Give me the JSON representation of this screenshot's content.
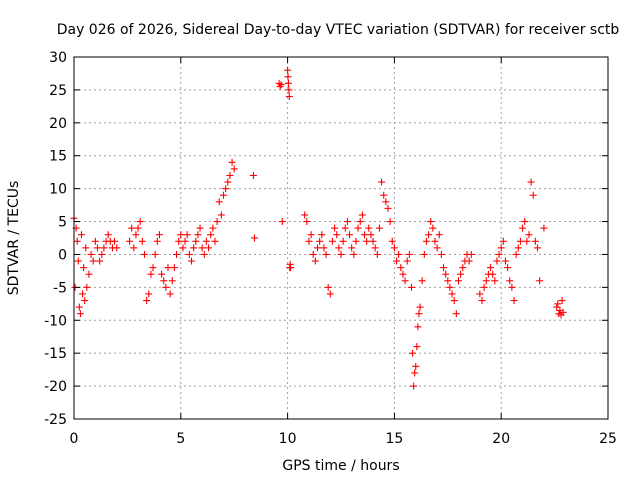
{
  "chart_data": {
    "type": "scatter",
    "title": "Day 026 of 2026, Sidereal Day-to-day VTEC variation (SDTVAR) for receiver sctb",
    "xlabel": "GPS time / hours",
    "ylabel": "SDTVAR / TECUs",
    "xlim": [
      0,
      25
    ],
    "ylim": [
      -25,
      30
    ],
    "xticks": [
      0,
      5,
      10,
      15,
      20,
      25
    ],
    "yticks": [
      -25,
      -20,
      -15,
      -10,
      -5,
      0,
      5,
      10,
      15,
      20,
      25,
      30
    ],
    "grid": true,
    "marker": "plus",
    "color": "#ff0000",
    "series": [
      {
        "name": "SDTVAR",
        "x": [
          0.0,
          0.05,
          0.1,
          0.15,
          0.2,
          0.25,
          0.3,
          0.35,
          0.4,
          0.45,
          0.5,
          0.55,
          0.6,
          0.7,
          0.8,
          0.9,
          1.0,
          1.1,
          1.2,
          1.3,
          1.4,
          1.5,
          1.6,
          1.7,
          1.8,
          1.9,
          2.0,
          2.6,
          2.7,
          2.8,
          2.9,
          3.0,
          3.1,
          3.2,
          3.3,
          3.4,
          3.5,
          3.6,
          3.7,
          3.8,
          3.9,
          4.0,
          4.1,
          4.2,
          4.3,
          4.4,
          4.5,
          4.6,
          4.7,
          4.8,
          4.9,
          5.0,
          5.1,
          5.2,
          5.3,
          5.4,
          5.5,
          5.6,
          5.7,
          5.8,
          5.9,
          6.0,
          6.1,
          6.2,
          6.3,
          6.4,
          6.5,
          6.6,
          6.7,
          6.8,
          6.9,
          7.0,
          7.1,
          7.2,
          7.3,
          7.4,
          7.5,
          8.4,
          8.45,
          9.6,
          9.65,
          9.7,
          9.75,
          10.0,
          10.02,
          10.04,
          10.06,
          10.08,
          10.1,
          10.12,
          10.14,
          10.8,
          10.9,
          11.0,
          11.1,
          11.2,
          11.3,
          11.4,
          11.5,
          11.6,
          11.7,
          11.8,
          11.9,
          12.0,
          12.1,
          12.2,
          12.3,
          12.4,
          12.5,
          12.6,
          12.7,
          12.8,
          12.9,
          13.0,
          13.1,
          13.2,
          13.3,
          13.4,
          13.5,
          13.6,
          13.7,
          13.8,
          13.9,
          14.0,
          14.1,
          14.2,
          14.3,
          14.4,
          14.5,
          14.6,
          14.7,
          14.8,
          14.9,
          15.0,
          15.1,
          15.2,
          15.3,
          15.4,
          15.5,
          15.6,
          15.7,
          15.8,
          15.85,
          15.9,
          15.95,
          16.0,
          16.05,
          16.1,
          16.15,
          16.2,
          16.3,
          16.4,
          16.5,
          16.6,
          16.7,
          16.8,
          16.9,
          17.0,
          17.1,
          17.2,
          17.3,
          17.4,
          17.5,
          17.6,
          17.7,
          17.8,
          17.9,
          18.0,
          18.1,
          18.2,
          18.3,
          18.4,
          18.5,
          18.6,
          19.0,
          19.1,
          19.2,
          19.3,
          19.4,
          19.5,
          19.6,
          19.7,
          19.8,
          19.9,
          20.0,
          20.1,
          20.2,
          20.3,
          20.4,
          20.5,
          20.6,
          20.7,
          20.8,
          20.9,
          21.0,
          21.1,
          21.2,
          21.3,
          21.4,
          21.5,
          21.6,
          21.7,
          21.8,
          22.0,
          22.6,
          22.65,
          22.7,
          22.75,
          22.8,
          22.85,
          22.9
        ],
        "y": [
          5.5,
          -5,
          4,
          2,
          -1,
          -8,
          -9,
          3,
          -6,
          -2,
          -7,
          1,
          -5,
          -3,
          0,
          -1,
          2,
          1,
          -1,
          0,
          1,
          2,
          3,
          2,
          1,
          2,
          1,
          2,
          4,
          1,
          3,
          4,
          5,
          2,
          0,
          -7,
          -6,
          -3,
          -2,
          0,
          2,
          3,
          -3,
          -4,
          -5,
          -2,
          -6,
          -4,
          -2,
          0,
          2,
          3,
          1,
          2,
          3,
          0,
          -1,
          1,
          2,
          3,
          4,
          1,
          0,
          2,
          1,
          3,
          4,
          2,
          5,
          8,
          6,
          9,
          10,
          11,
          12,
          14,
          13,
          12,
          2.5,
          26,
          25.5,
          25.8,
          5,
          28,
          27,
          26,
          25,
          24,
          -2,
          -1.5,
          -2,
          6,
          5,
          2,
          3,
          0,
          -1,
          1,
          2,
          3,
          1,
          0,
          -5,
          -6,
          2,
          4,
          3,
          1,
          0,
          2,
          4,
          5,
          3,
          1,
          0,
          2,
          4,
          5,
          6,
          3,
          2,
          4,
          3,
          2,
          1,
          0,
          4,
          11,
          9,
          8,
          7,
          5,
          2,
          1,
          -1,
          0,
          -2,
          -3,
          -4,
          -1,
          0,
          -5,
          -15,
          -20,
          -18,
          -17,
          -14,
          -11,
          -9,
          -8,
          -4,
          0,
          2,
          3,
          5,
          4,
          2,
          1,
          3,
          0,
          -2,
          -3,
          -4,
          -5,
          -6,
          -7,
          -9,
          -4,
          -3,
          -2,
          -1,
          0,
          -1,
          0,
          -6,
          -7,
          -5,
          -4,
          -3,
          -2,
          -3,
          -4,
          -1,
          0,
          1,
          2,
          -1,
          -2,
          -4,
          -5,
          -7,
          0,
          1,
          2,
          4,
          5,
          2,
          3,
          11,
          9,
          2,
          1,
          -4,
          4,
          -8,
          -7.5,
          -9,
          -8.5,
          -9.2,
          -7,
          -8.8
        ]
      }
    ]
  }
}
